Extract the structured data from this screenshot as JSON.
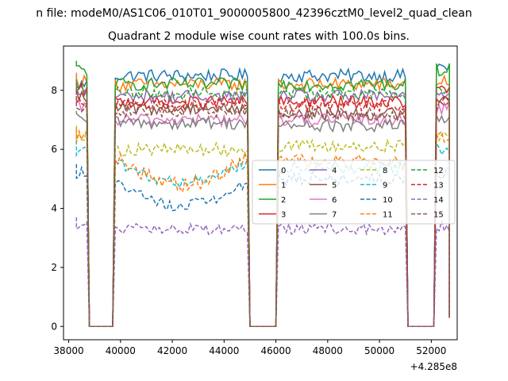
{
  "chart_data": {
    "type": "line",
    "suptitle": "n file: modeM0/AS1C06_010T01_9000005800_42396cztM0_level2_quad_clean",
    "title": "Quadrant 2 module wise count rates with 100.0s bins.",
    "xlabel": "",
    "ylabel": "",
    "x_offset_label": "+4.285e8",
    "xlim": [
      37800,
      53000
    ],
    "ylim": [
      -0.45,
      9.5
    ],
    "xticks": [
      38000,
      40000,
      42000,
      44000,
      46000,
      48000,
      50000,
      52000
    ],
    "xtick_labels": [
      "38000",
      "40000",
      "42000",
      "44000",
      "46000",
      "48000",
      "50000",
      "52000"
    ],
    "yticks": [
      0,
      2,
      4,
      6,
      8
    ],
    "ytick_labels": [
      "0",
      "2",
      "4",
      "6",
      "8"
    ],
    "grid": false,
    "legend_position": "center-right",
    "legend_columns": 4,
    "x_segments": [
      [
        38300,
        38700
      ],
      [
        39800,
        44900
      ],
      [
        46100,
        51000
      ],
      [
        52200,
        52700
      ]
    ],
    "series": [
      {
        "name": "0",
        "color": "#1f77b4",
        "dash": "solid",
        "levels": [
          8.2,
          8.5,
          8.5,
          8.8
        ]
      },
      {
        "name": "1",
        "color": "#ff7f0e",
        "dash": "solid",
        "levels": [
          8.3,
          8.2,
          8.2,
          8.3
        ]
      },
      {
        "name": "2",
        "color": "#2ca02c",
        "dash": "solid",
        "levels": [
          8.7,
          8.2,
          8.2,
          8.7
        ]
      },
      {
        "name": "3",
        "color": "#d62728",
        "dash": "solid",
        "levels": [
          8.0,
          7.6,
          7.6,
          8.0
        ]
      },
      {
        "name": "4",
        "color": "#9467bd",
        "dash": "solid",
        "levels": [
          7.9,
          7.8,
          7.8,
          7.9
        ]
      },
      {
        "name": "5",
        "color": "#8c564b",
        "dash": "solid",
        "levels": [
          7.8,
          7.4,
          7.2,
          7.8
        ]
      },
      {
        "name": "6",
        "color": "#e377c2",
        "dash": "solid",
        "levels": [
          7.4,
          7.0,
          7.0,
          7.4
        ]
      },
      {
        "name": "7",
        "color": "#7f7f7f",
        "dash": "solid",
        "levels": [
          7.0,
          6.9,
          6.8,
          7.0
        ]
      },
      {
        "name": "8",
        "color": "#bcbd22",
        "dash": "dashed",
        "levels": [
          6.5,
          6.0,
          6.1,
          6.5
        ]
      },
      {
        "name": "9",
        "color": "#17becf",
        "dash": "dashed",
        "levels": [
          6.0,
          5.2,
          5.4,
          6.0
        ]
      },
      {
        "name": "10",
        "color": "#1f77b4",
        "dash": "dashed",
        "levels": [
          5.2,
          4.5,
          5.0,
          5.2
        ]
      },
      {
        "name": "11",
        "color": "#ff7f0e",
        "dash": "dashed",
        "levels": [
          6.4,
          5.2,
          5.6,
          6.4
        ]
      },
      {
        "name": "12",
        "color": "#2ca02c",
        "dash": "dashed",
        "levels": [
          8.0,
          7.9,
          7.9,
          8.0
        ]
      },
      {
        "name": "13",
        "color": "#d62728",
        "dash": "dashed",
        "levels": [
          7.7,
          7.5,
          7.5,
          7.7
        ]
      },
      {
        "name": "14",
        "color": "#9467bd",
        "dash": "dashed",
        "levels": [
          3.4,
          3.3,
          3.3,
          3.4
        ]
      },
      {
        "name": "15",
        "color": "#8c564b",
        "dash": "dashed",
        "levels": [
          7.5,
          7.3,
          7.2,
          7.5
        ]
      }
    ]
  }
}
